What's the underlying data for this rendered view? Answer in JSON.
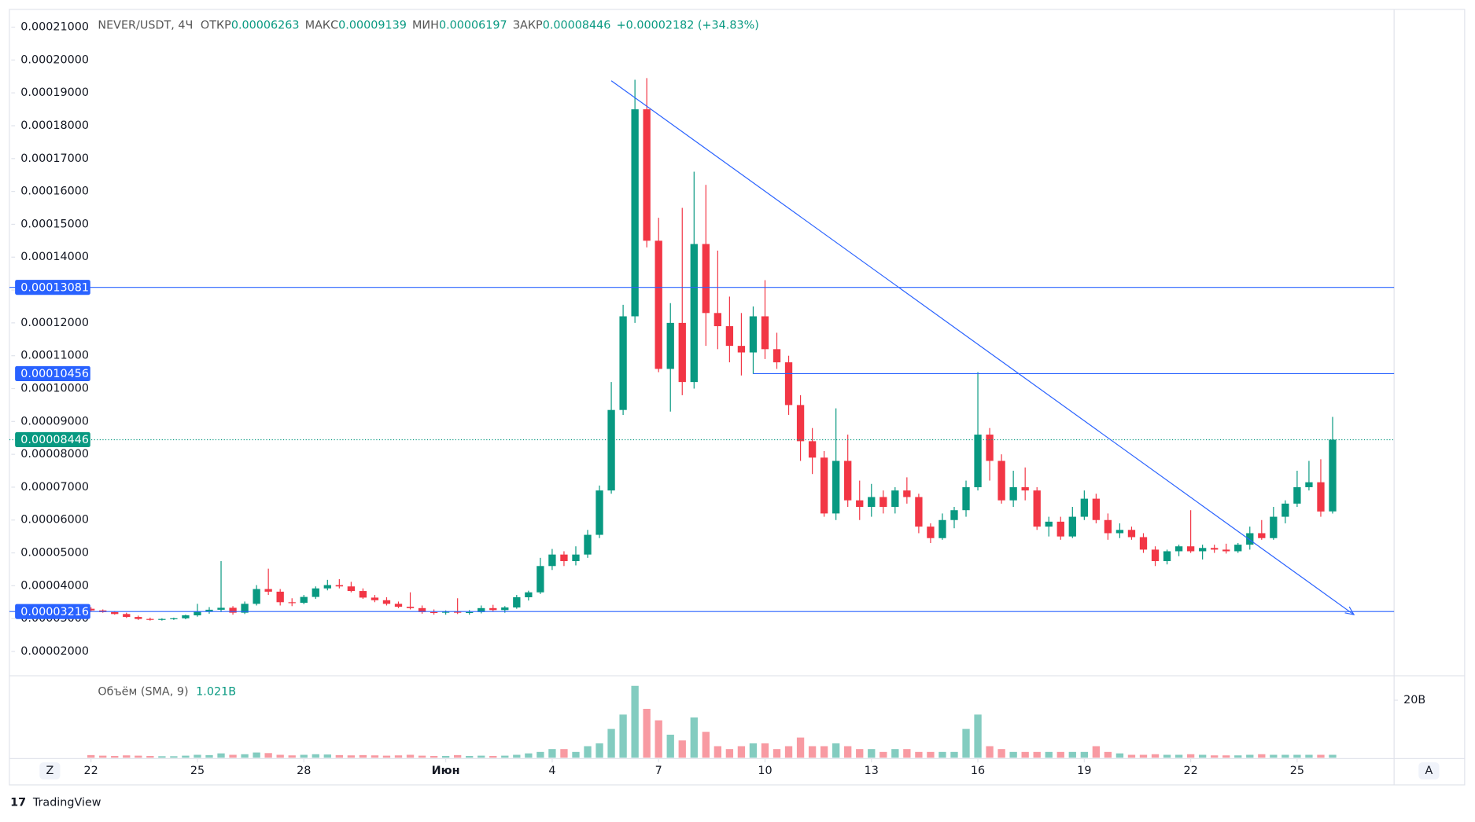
{
  "chart_data": {
    "type": "candlestick",
    "title": "NEVER/USDT, 4Ч",
    "ohlc_labels": [
      "ОТКР",
      "МАКС",
      "МИН",
      "ЗАКР"
    ],
    "change_label": "+0.00002182 (+34.83%)",
    "up_color": "#089981",
    "down_color": "#f23645",
    "ylim": [
      1.26e-05,
      0.0002154
    ],
    "yticks": [
      {
        "value": 2e-05,
        "label": "0.00002000"
      },
      {
        "value": 3e-05,
        "label": "0.00003000"
      },
      {
        "value": 4e-05,
        "label": "0.00004000"
      },
      {
        "value": 5e-05,
        "label": "0.00005000"
      },
      {
        "value": 6e-05,
        "label": "0.00006000"
      },
      {
        "value": 7e-05,
        "label": "0.00007000"
      },
      {
        "value": 8e-05,
        "label": "0.00008000"
      },
      {
        "value": 9e-05,
        "label": "0.00009000"
      },
      {
        "value": 0.0001,
        "label": "0.00010000"
      },
      {
        "value": 0.00011,
        "label": "0.00011000"
      },
      {
        "value": 0.00012,
        "label": "0.00012000"
      },
      {
        "value": 0.00013,
        "label": "0.00013000"
      },
      {
        "value": 0.00014,
        "label": "0.00014000"
      },
      {
        "value": 0.00015,
        "label": "0.00015000"
      },
      {
        "value": 0.00016,
        "label": "0.00016000"
      },
      {
        "value": 0.00017,
        "label": "0.00017000"
      },
      {
        "value": 0.00018,
        "label": "0.00018000"
      },
      {
        "value": 0.00019,
        "label": "0.00019000"
      },
      {
        "value": 0.0002,
        "label": "0.00020000"
      },
      {
        "value": 0.00021,
        "label": "0.00021000"
      }
    ],
    "xlim": [
      -6.9,
      110.2
    ],
    "xticks": [
      {
        "value": 0,
        "label": "22"
      },
      {
        "value": 9,
        "label": "25"
      },
      {
        "value": 18,
        "label": "28"
      },
      {
        "value": 30,
        "label": "Июн"
      },
      {
        "value": 39,
        "label": "4"
      },
      {
        "value": 48,
        "label": "7"
      },
      {
        "value": 57,
        "label": "10"
      },
      {
        "value": 66,
        "label": "13"
      },
      {
        "value": 75,
        "label": "16"
      },
      {
        "value": 84,
        "label": "19"
      },
      {
        "value": 93,
        "label": "22"
      },
      {
        "value": 102,
        "label": "25"
      }
    ],
    "candles": [
      [
        3.3e-05,
        3.35e-05,
        3.22e-05,
        3.25e-05
      ],
      [
        3.25e-05,
        3.28e-05,
        3.18e-05,
        3.2e-05
      ],
      [
        3.2e-05,
        3.23e-05,
        3.12e-05,
        3.14e-05
      ],
      [
        3.14e-05,
        3.18e-05,
        3.02e-05,
        3.05e-05
      ],
      [
        3.05e-05,
        3.09e-05,
        2.96e-05,
        2.99e-05
      ],
      [
        2.99e-05,
        3.03e-05,
        2.94e-05,
        2.97e-05
      ],
      [
        2.97e-05,
        3.01e-05,
        2.94e-05,
        2.99e-05
      ],
      [
        2.99e-05,
        3.03e-05,
        2.96e-05,
        3.01e-05
      ],
      [
        3.01e-05,
        3.12e-05,
        2.98e-05,
        3.1e-05
      ],
      [
        3.1e-05,
        3.45e-05,
        3.06e-05,
        3.22e-05
      ],
      [
        3.22e-05,
        3.35e-05,
        3.15e-05,
        3.27e-05
      ],
      [
        3.27e-05,
        4.75e-05,
        3.2e-05,
        3.33e-05
      ],
      [
        3.33e-05,
        3.38e-05,
        3.12e-05,
        3.18e-05
      ],
      [
        3.18e-05,
        3.52e-05,
        3.14e-05,
        3.45e-05
      ],
      [
        3.45e-05,
        4.02e-05,
        3.4e-05,
        3.9e-05
      ],
      [
        3.9e-05,
        4.52e-05,
        3.72e-05,
        3.82e-05
      ],
      [
        3.82e-05,
        3.9e-05,
        3.4e-05,
        3.5e-05
      ],
      [
        3.5e-05,
        3.62e-05,
        3.38e-05,
        3.48e-05
      ],
      [
        3.48e-05,
        3.72e-05,
        3.44e-05,
        3.66e-05
      ],
      [
        3.66e-05,
        3.98e-05,
        3.6e-05,
        3.92e-05
      ],
      [
        3.92e-05,
        4.18e-05,
        3.86e-05,
        4.02e-05
      ],
      [
        4.02e-05,
        4.2e-05,
        3.92e-05,
        3.98e-05
      ],
      [
        3.98e-05,
        4.12e-05,
        3.8e-05,
        3.84e-05
      ],
      [
        3.84e-05,
        3.92e-05,
        3.6e-05,
        3.64e-05
      ],
      [
        3.64e-05,
        3.72e-05,
        3.5e-05,
        3.56e-05
      ],
      [
        3.56e-05,
        3.65e-05,
        3.4e-05,
        3.45e-05
      ],
      [
        3.45e-05,
        3.52e-05,
        3.32e-05,
        3.36e-05
      ],
      [
        3.36e-05,
        3.8e-05,
        3.28e-05,
        3.32e-05
      ],
      [
        3.32e-05,
        3.4e-05,
        3.15e-05,
        3.2e-05
      ],
      [
        3.2e-05,
        3.28e-05,
        3.12e-05,
        3.18e-05
      ],
      [
        3.18e-05,
        3.25e-05,
        3.12e-05,
        3.22e-05
      ],
      [
        3.22e-05,
        3.62e-05,
        3.14e-05,
        3.18e-05
      ],
      [
        3.18e-05,
        3.26e-05,
        3.12e-05,
        3.2e-05
      ],
      [
        3.2e-05,
        3.4e-05,
        3.16e-05,
        3.32e-05
      ],
      [
        3.32e-05,
        3.42e-05,
        3.22e-05,
        3.26e-05
      ],
      [
        3.26e-05,
        3.38e-05,
        3.18e-05,
        3.34e-05
      ],
      [
        3.34e-05,
        3.72e-05,
        3.3e-05,
        3.65e-05
      ],
      [
        3.65e-05,
        3.85e-05,
        3.55e-05,
        3.8e-05
      ],
      [
        3.8e-05,
        4.85e-05,
        3.75e-05,
        4.6e-05
      ],
      [
        4.6e-05,
        5.12e-05,
        4.48e-05,
        4.95e-05
      ],
      [
        4.95e-05,
        5.05e-05,
        4.6e-05,
        4.75e-05
      ],
      [
        4.75e-05,
        5.2e-05,
        4.62e-05,
        4.95e-05
      ],
      [
        4.95e-05,
        5.7e-05,
        4.85e-05,
        5.55e-05
      ],
      [
        5.55e-05,
        7.05e-05,
        5.45e-05,
        6.9e-05
      ],
      [
        6.9e-05,
        0.000102,
        6.8e-05,
        9.35e-05
      ],
      [
        9.35e-05,
        0.0001255,
        9.2e-05,
        0.000122
      ],
      [
        0.000122,
        0.000194,
        0.00012,
        0.000185
      ],
      [
        0.000185,
        0.0001945,
        0.000143,
        0.000145
      ],
      [
        0.000145,
        0.000152,
        0.000105,
        0.000106
      ],
      [
        0.000106,
        0.000126,
        9.3e-05,
        0.00012
      ],
      [
        0.00012,
        0.000155,
        9.8e-05,
        0.000102
      ],
      [
        0.000102,
        0.000166,
        0.0001,
        0.000144
      ],
      [
        0.000144,
        0.000162,
        0.000113,
        0.000123
      ],
      [
        0.000123,
        0.000142,
        0.000112,
        0.000119
      ],
      [
        0.000119,
        0.000128,
        0.000108,
        0.000113
      ],
      [
        0.000113,
        0.000123,
        0.000104,
        0.000111
      ],
      [
        0.000111,
        0.000125,
        0.0001045,
        0.000122
      ],
      [
        0.000122,
        0.000133,
        0.000109,
        0.000112
      ],
      [
        0.000112,
        0.000117,
        0.000106,
        0.000108
      ],
      [
        0.000108,
        0.00011,
        9.2e-05,
        9.5e-05
      ],
      [
        9.5e-05,
        9.8e-05,
        7.8e-05,
        8.4e-05
      ],
      [
        8.4e-05,
        8.8e-05,
        7.4e-05,
        7.9e-05
      ],
      [
        7.9e-05,
        8.1e-05,
        6.1e-05,
        6.2e-05
      ],
      [
        6.2e-05,
        9.4e-05,
        6e-05,
        7.8e-05
      ],
      [
        7.8e-05,
        8.6e-05,
        6.4e-05,
        6.6e-05
      ],
      [
        6.6e-05,
        7.2e-05,
        6e-05,
        6.4e-05
      ],
      [
        6.4e-05,
        7.1e-05,
        6.1e-05,
        6.7e-05
      ],
      [
        6.7e-05,
        6.9e-05,
        6.2e-05,
        6.4e-05
      ],
      [
        6.4e-05,
        7e-05,
        6.2e-05,
        6.9e-05
      ],
      [
        6.9e-05,
        7.3e-05,
        6.5e-05,
        6.7e-05
      ],
      [
        6.7e-05,
        6.8e-05,
        5.6e-05,
        5.8e-05
      ],
      [
        5.8e-05,
        5.9e-05,
        5.3e-05,
        5.45e-05
      ],
      [
        5.45e-05,
        6.2e-05,
        5.4e-05,
        6e-05
      ],
      [
        6e-05,
        6.4e-05,
        5.75e-05,
        6.3e-05
      ],
      [
        6.3e-05,
        7.2e-05,
        6.1e-05,
        7e-05
      ],
      [
        7e-05,
        0.000105,
        6.9e-05,
        8.6e-05
      ],
      [
        8.6e-05,
        8.8e-05,
        7.2e-05,
        7.8e-05
      ],
      [
        7.8e-05,
        8e-05,
        6.5e-05,
        6.6e-05
      ],
      [
        6.6e-05,
        7.5e-05,
        6.4e-05,
        7e-05
      ],
      [
        7e-05,
        7.6e-05,
        6.6e-05,
        6.9e-05
      ],
      [
        6.9e-05,
        7e-05,
        5.7e-05,
        5.8e-05
      ],
      [
        5.8e-05,
        6.1e-05,
        5.5e-05,
        5.95e-05
      ],
      [
        5.95e-05,
        6.1e-05,
        5.4e-05,
        5.5e-05
      ],
      [
        5.5e-05,
        6.4e-05,
        5.45e-05,
        6.1e-05
      ],
      [
        6.1e-05,
        6.9e-05,
        6e-05,
        6.65e-05
      ],
      [
        6.65e-05,
        6.8e-05,
        5.9e-05,
        6e-05
      ],
      [
        6e-05,
        6.2e-05,
        5.4e-05,
        5.6e-05
      ],
      [
        5.6e-05,
        5.9e-05,
        5.45e-05,
        5.7e-05
      ],
      [
        5.7e-05,
        5.8e-05,
        5.4e-05,
        5.48e-05
      ],
      [
        5.48e-05,
        5.6e-05,
        5e-05,
        5.1e-05
      ],
      [
        5.1e-05,
        5.2e-05,
        4.6e-05,
        4.75e-05
      ],
      [
        4.75e-05,
        5.1e-05,
        4.65e-05,
        5.05e-05
      ],
      [
        5.05e-05,
        5.25e-05,
        4.9e-05,
        5.2e-05
      ],
      [
        5.2e-05,
        6.3e-05,
        5e-05,
        5.05e-05
      ],
      [
        5.05e-05,
        5.25e-05,
        4.8e-05,
        5.15e-05
      ],
      [
        5.15e-05,
        5.25e-05,
        5e-05,
        5.1e-05
      ],
      [
        5.1e-05,
        5.28e-05,
        4.98e-05,
        5.05e-05
      ],
      [
        5.05e-05,
        5.3e-05,
        5e-05,
        5.25e-05
      ],
      [
        5.25e-05,
        5.8e-05,
        5.1e-05,
        5.6e-05
      ],
      [
        5.6e-05,
        6e-05,
        5.4e-05,
        5.45e-05
      ],
      [
        5.45e-05,
        6.4e-05,
        5.4e-05,
        6.1e-05
      ],
      [
        6.1e-05,
        6.6e-05,
        5.9e-05,
        6.5e-05
      ],
      [
        6.5e-05,
        7.5e-05,
        6.4e-05,
        7e-05
      ],
      [
        7e-05,
        7.8e-05,
        6.9e-05,
        7.15e-05
      ],
      [
        7.15e-05,
        7.85e-05,
        6.1e-05,
        6.26e-05
      ],
      [
        6.263e-05,
        9.139e-05,
        6.197e-05,
        8.446e-05
      ]
    ],
    "levels": [
      {
        "value": 0.00013081
      },
      {
        "value": 0.00010456,
        "from": 56
      },
      {
        "value": 3.216e-05
      }
    ],
    "trendline": {
      "x": [
        44,
        106.8
      ],
      "y": [
        0.0001937,
        3.12e-05
      ]
    },
    "volume": {
      "name": "Объём (SMA, 9)",
      "sma_label": "1.021B",
      "ylim": [
        0,
        28500000000.0
      ],
      "yticks": [
        {
          "value": 20000000000.0,
          "label": "20B"
        }
      ],
      "values": [
        900000000.0,
        700000000.0,
        600000000.0,
        800000000.0,
        700000000.0,
        600000000.0,
        500000000.0,
        500000000.0,
        700000000.0,
        1000000000.0,
        900000000.0,
        1500000000.0,
        1000000000.0,
        1200000000.0,
        1800000000.0,
        1600000000.0,
        1000000000.0,
        800000000.0,
        1000000000.0,
        1200000000.0,
        1100000000.0,
        900000000.0,
        800000000.0,
        900000000.0,
        800000000.0,
        700000000.0,
        800000000.0,
        1000000000.0,
        700000000.0,
        600000000.0,
        600000000.0,
        900000000.0,
        600000000.0,
        700000000.0,
        600000000.0,
        700000000.0,
        1000000000.0,
        1500000000.0,
        2000000000.0,
        3000000000.0,
        3000000000.0,
        2000000000.0,
        4000000000.0,
        5000000000.0,
        10000000000.0,
        15000000000.0,
        25000000000.0,
        17000000000.0,
        13000000000.0,
        8000000000.0,
        6000000000.0,
        14000000000.0,
        9000000000.0,
        4000000000.0,
        3000000000.0,
        4000000000.0,
        5000000000.0,
        5000000000.0,
        3000000000.0,
        4000000000.0,
        7000000000.0,
        4000000000.0,
        4000000000.0,
        5000000000.0,
        4000000000.0,
        3000000000.0,
        3000000000.0,
        2000000000.0,
        3000000000.0,
        3000000000.0,
        2000000000.0,
        2000000000.0,
        2000000000.0,
        2000000000.0,
        10000000000.0,
        15000000000.0,
        4000000000.0,
        3000000000.0,
        2000000000.0,
        2000000000.0,
        2000000000.0,
        2000000000.0,
        2000000000.0,
        2000000000.0,
        2000000000.0,
        4000000000.0,
        2000000000.0,
        1500000000.0,
        1000000000.0,
        1000000000.0,
        1200000000.0,
        1000000000.0,
        1000000000.0,
        1200000000.0,
        1000000000.0,
        800000000.0,
        800000000.0,
        800000000.0,
        1000000000.0,
        1200000000.0,
        1000000000.0,
        1000000000.0,
        1000000000.0,
        1000000000.0,
        1000000000.0,
        1000000000.0
      ]
    }
  },
  "footer": {
    "brand": "TradingView",
    "left_button": "Z",
    "right_button": "A"
  }
}
